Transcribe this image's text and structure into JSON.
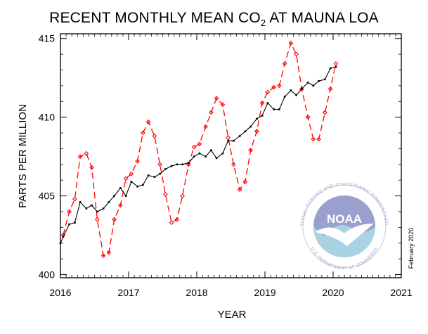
{
  "title": {
    "pre": "RECENT MONTHLY MEAN CO",
    "sub": "2",
    "post": " AT MAUNA LOA"
  },
  "stamp": "February 2020",
  "logo": {
    "center_text": "NOAA",
    "ring_top": "NATIONAL OCEANIC AND ATMOSPHERIC ADMINISTRATION",
    "ring_bottom": "U.S. DEPARTMENT OF COMMERCE"
  },
  "colors": {
    "monthly": "#ff0000",
    "trend": "#000000",
    "noaa_blue": "#9aa0cd",
    "noaa_teal": "#a9d3e2"
  },
  "chart_data": {
    "type": "line",
    "title": "RECENT MONTHLY MEAN CO2 AT MAUNA LOA",
    "xlabel": "YEAR",
    "ylabel": "PARTS PER MILLION",
    "xlim": [
      2016,
      2021
    ],
    "ylim": [
      399.8,
      415.3
    ],
    "xticks": [
      2016,
      2017,
      2018,
      2019,
      2020,
      2021
    ],
    "yticks": [
      400,
      405,
      410,
      415
    ],
    "grid": false,
    "legend": "none",
    "series": [
      {
        "style": "dashed-red-diamond",
        "x": [
          2016.04,
          2016.13,
          2016.21,
          2016.29,
          2016.38,
          2016.46,
          2016.54,
          2016.63,
          2016.71,
          2016.79,
          2016.88,
          2016.96,
          2017.04,
          2017.13,
          2017.21,
          2017.29,
          2017.38,
          2017.46,
          2017.54,
          2017.63,
          2017.71,
          2017.79,
          2017.88,
          2017.96,
          2018.04,
          2018.13,
          2018.21,
          2018.29,
          2018.38,
          2018.46,
          2018.54,
          2018.63,
          2018.71,
          2018.79,
          2018.88,
          2018.96,
          2019.04,
          2019.13,
          2019.21,
          2019.29,
          2019.38,
          2019.46,
          2019.54,
          2019.63,
          2019.71,
          2019.79,
          2019.88,
          2019.96,
          2020.04
        ],
        "values": [
          402.5,
          404.0,
          404.8,
          407.5,
          407.7,
          406.8,
          403.5,
          401.2,
          401.4,
          403.5,
          404.4,
          406.1,
          406.4,
          407.2,
          409.0,
          409.7,
          408.8,
          407.0,
          405.1,
          403.3,
          403.5,
          405.0,
          407.0,
          408.1,
          408.3,
          409.4,
          410.3,
          411.2,
          410.8,
          408.7,
          407.0,
          405.4,
          405.9,
          407.9,
          409.1,
          410.9,
          411.6,
          411.9,
          412.0,
          413.4,
          414.7,
          414.0,
          411.8,
          410.0,
          408.6,
          408.6,
          410.3,
          411.8,
          413.4
        ]
      },
      {
        "style": "solid-black-dots",
        "x": [
          2016.0,
          2016.04,
          2016.13,
          2016.21,
          2016.29,
          2016.38,
          2016.46,
          2016.54,
          2016.63,
          2016.71,
          2016.79,
          2016.88,
          2016.96,
          2017.04,
          2017.13,
          2017.21,
          2017.29,
          2017.38,
          2017.46,
          2017.54,
          2017.63,
          2017.71,
          2017.79,
          2017.88,
          2017.96,
          2018.04,
          2018.13,
          2018.21,
          2018.29,
          2018.38,
          2018.46,
          2018.54,
          2018.63,
          2018.71,
          2018.79,
          2018.88,
          2018.96,
          2019.04,
          2019.13,
          2019.21,
          2019.29,
          2019.38,
          2019.46,
          2019.54,
          2019.63,
          2019.71,
          2019.79,
          2019.88,
          2019.96,
          2020.04
        ],
        "values": [
          402.0,
          402.4,
          403.2,
          403.3,
          404.6,
          404.2,
          404.4,
          404.0,
          404.2,
          404.6,
          405.0,
          405.5,
          405.0,
          405.9,
          405.6,
          405.7,
          406.3,
          406.2,
          406.4,
          406.7,
          406.9,
          407.0,
          407.0,
          407.1,
          407.5,
          407.7,
          407.5,
          407.9,
          407.4,
          407.7,
          408.5,
          408.5,
          408.8,
          409.1,
          409.4,
          409.9,
          410.1,
          410.9,
          410.5,
          410.5,
          411.3,
          411.7,
          411.4,
          411.8,
          412.2,
          412.0,
          412.3,
          412.4,
          413.1,
          413.2
        ]
      }
    ]
  }
}
